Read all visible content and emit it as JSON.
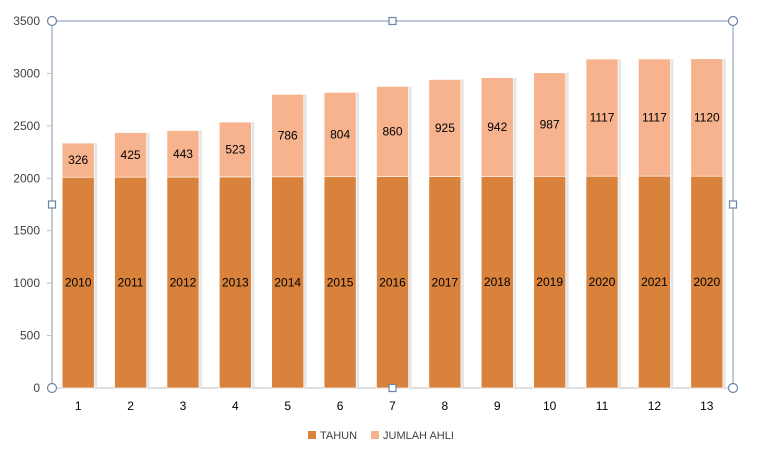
{
  "chart_data": {
    "type": "bar",
    "stacked": true,
    "categories": [
      "1",
      "2",
      "3",
      "4",
      "5",
      "6",
      "7",
      "8",
      "9",
      "10",
      "11",
      "12",
      "13"
    ],
    "series": [
      {
        "name": "TAHUN",
        "color": "#D9823C",
        "values": [
          2010,
          2011,
          2012,
          2013,
          2014,
          2015,
          2016,
          2017,
          2018,
          2019,
          2020,
          2021,
          2020
        ],
        "labels": [
          "2010",
          "2011",
          "2012",
          "2013",
          "2014",
          "2015",
          "2016",
          "2017",
          "2018",
          "2019",
          "2020",
          "2021",
          "2020"
        ]
      },
      {
        "name": "JUMLAH AHLI",
        "color": "#F7B38E",
        "values": [
          326,
          425,
          443,
          523,
          786,
          804,
          860,
          925,
          942,
          987,
          1117,
          1117,
          1120
        ],
        "labels": [
          "326",
          "425",
          "443",
          "523",
          "786",
          "804",
          "860",
          "925",
          "942",
          "987",
          "1117",
          "1117",
          "1120"
        ]
      }
    ],
    "ylim": [
      0,
      3500
    ],
    "yticks": [
      0,
      500,
      1000,
      1500,
      2000,
      2500,
      3000,
      3500
    ],
    "ytick_labels": [
      "0",
      "500",
      "1000",
      "1500",
      "2000",
      "2500",
      "3000",
      "3500"
    ],
    "grid": false,
    "legend_position": "bottom",
    "title": "",
    "xlabel": "",
    "ylabel": ""
  },
  "colors": {
    "axis": "#BFBFBF",
    "selection_frame": "#8096B0",
    "handle_stroke": "#6A86A6",
    "text": "#000000",
    "tick_text": "#404040"
  }
}
